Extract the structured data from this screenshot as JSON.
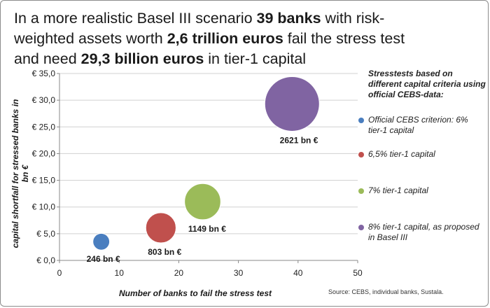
{
  "title": {
    "p1": "In a more realistic Basel III scenario ",
    "b1": "39 banks",
    "p2": " with risk-weighted assets worth ",
    "b2": "2,6 trillion euros",
    "p3": " fail the stress test and need ",
    "b3": "29,3 billion euros",
    "p4": " in tier-1 capital"
  },
  "legend_title": "Stresstests based on different capital criteria using official CEBS-data:",
  "source": "Source: CEBS, individual banks, Sustala.",
  "chart_data": {
    "type": "bubble",
    "xlabel": "Number of banks to fail the stress test",
    "ylabel": "capital shortfall for stressed banks in bn €",
    "xlim": [
      0,
      50
    ],
    "ylim": [
      0,
      35
    ],
    "x_ticks": [
      "0",
      "10",
      "20",
      "30",
      "40",
      "50"
    ],
    "y_ticks": [
      "€ 0,0",
      "€ 5,0",
      "€ 10,0",
      "€ 15,0",
      "€ 20,0",
      "€ 25,0",
      "€ 30,0",
      "€ 35,0"
    ],
    "grid": "horizontal",
    "legend": "right",
    "series": [
      {
        "name": "Official CEBS criterion: 6% tier-1 capital",
        "color": "#4a7ebf",
        "x": 7,
        "y": 3.5,
        "size": 246,
        "label": "246 bn €"
      },
      {
        "name": "6,5% tier-1 capital",
        "color": "#c0504d",
        "x": 17,
        "y": 6.1,
        "size": 803,
        "label": "803 bn €"
      },
      {
        "name": "7% tier-1 capital",
        "color": "#9bbb59",
        "x": 24,
        "y": 11.0,
        "size": 1149,
        "label": "1149 bn €"
      },
      {
        "name": "8% tier-1 capital, as proposed in Basel III",
        "color": "#8064a2",
        "x": 39,
        "y": 29.3,
        "size": 2621,
        "label": "2621 bn €"
      }
    ]
  }
}
